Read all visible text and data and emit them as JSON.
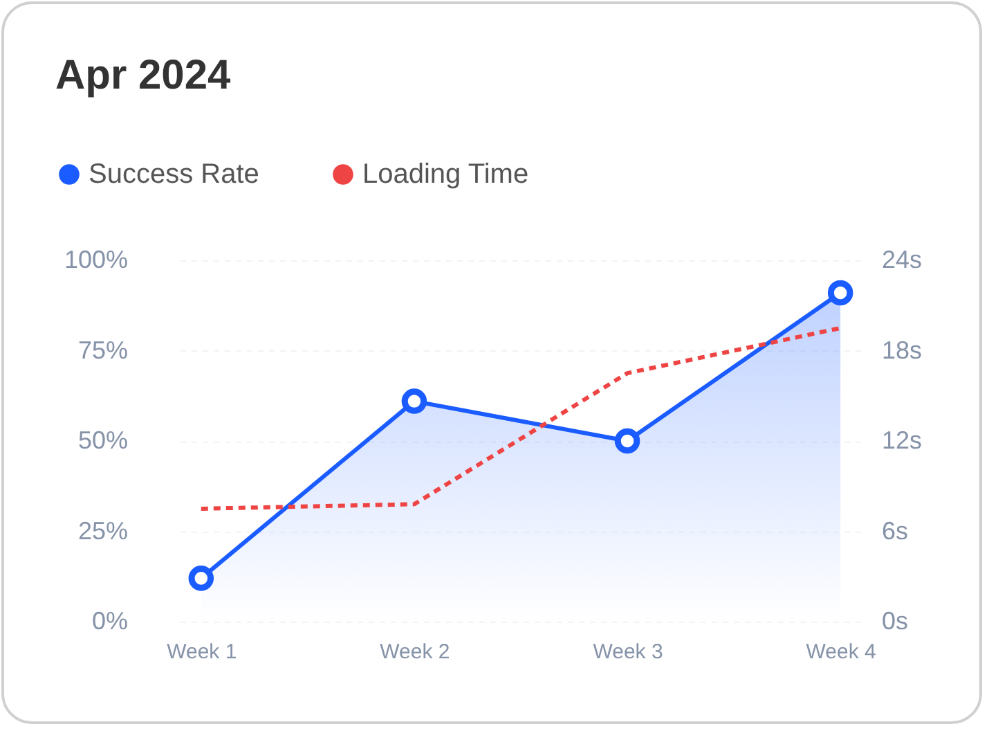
{
  "chart_data": {
    "type": "line",
    "title": "Apr 2024",
    "categories": [
      "Week 1",
      "Week 2",
      "Week 3",
      "Week 4"
    ],
    "series": [
      {
        "name": "Success Rate",
        "type": "area",
        "color": "#1a5cff",
        "marker": "circle",
        "values": [
          12,
          61,
          50,
          91
        ]
      },
      {
        "name": "Loading Time",
        "color": "#ef4444",
        "axis": "y2",
        "line_style": "dashed",
        "values": [
          7.5,
          7.8,
          16.5,
          19.5
        ]
      }
    ],
    "ylim": [
      0,
      100
    ],
    "yticks": [
      {
        "value": 0,
        "label": "0%"
      },
      {
        "value": 25,
        "label": "25%"
      },
      {
        "value": 50,
        "label": "50%"
      },
      {
        "value": 75,
        "label": "75%"
      },
      {
        "value": 100,
        "label": "100%"
      }
    ],
    "y2lim": [
      0,
      24
    ],
    "y2ticks": [
      {
        "value": 0,
        "label": "0s"
      },
      {
        "value": 6,
        "label": "6s"
      },
      {
        "value": 12,
        "label": "12s"
      },
      {
        "value": 18,
        "label": "18s"
      },
      {
        "value": 24,
        "label": "24s"
      }
    ],
    "grid": "y",
    "legend": "top left"
  }
}
